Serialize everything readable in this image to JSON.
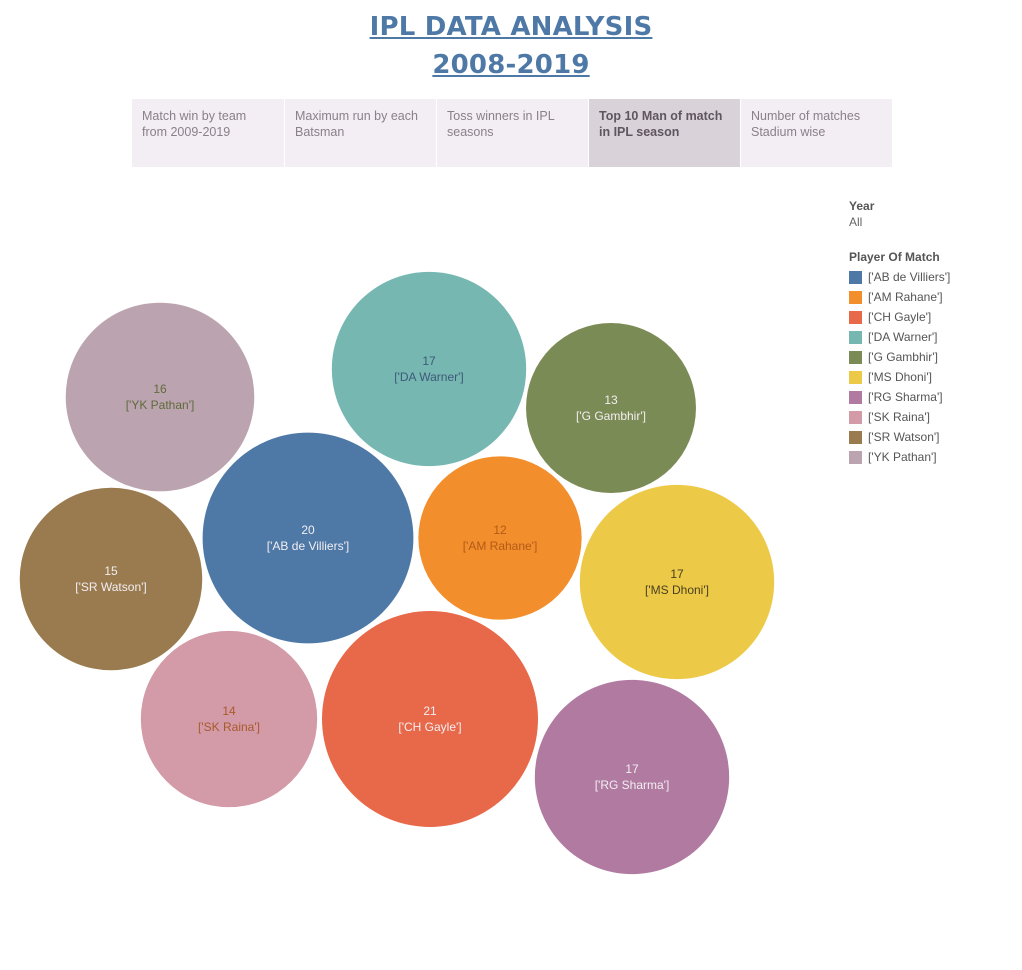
{
  "header": {
    "title_line1": "IPL DATA ANALYSIS",
    "title_line2": "2008-2019"
  },
  "tabs": [
    {
      "label": "Match win by team from 2009-2019",
      "active": false
    },
    {
      "label": "Maximum run by each Batsman",
      "active": false
    },
    {
      "label": "Toss winners in IPL seasons",
      "active": false
    },
    {
      "label": "Top 10  Man of match in IPL season",
      "active": true
    },
    {
      "label": "Number of matches Stadium wise",
      "active": false
    }
  ],
  "filter": {
    "title": "Year",
    "value": "All"
  },
  "legend": {
    "title": "Player Of Match"
  },
  "chart_data": {
    "type": "bubble",
    "series": [
      {
        "name": "['AB de Villiers']",
        "value": 20,
        "color": "#4e79a7"
      },
      {
        "name": "['AM Rahane']",
        "value": 12,
        "color": "#f28e2b"
      },
      {
        "name": "['CH Gayle']",
        "value": 21,
        "color": "#e8694a"
      },
      {
        "name": "['DA Warner']",
        "value": 17,
        "color": "#76b7b2"
      },
      {
        "name": "['G Gambhir']",
        "value": 13,
        "color": "#7b8b55"
      },
      {
        "name": "['MS Dhoni']",
        "value": 17,
        "color": "#edc948"
      },
      {
        "name": "['RG Sharma']",
        "value": 17,
        "color": "#b07aa1"
      },
      {
        "name": "['SK Raina']",
        "value": 14,
        "color": "#d39aa8"
      },
      {
        "name": "['SR Watson']",
        "value": 15,
        "color": "#9a7b4f"
      },
      {
        "name": "['YK Pathan']",
        "value": 16,
        "color": "#bba3b0"
      }
    ]
  }
}
